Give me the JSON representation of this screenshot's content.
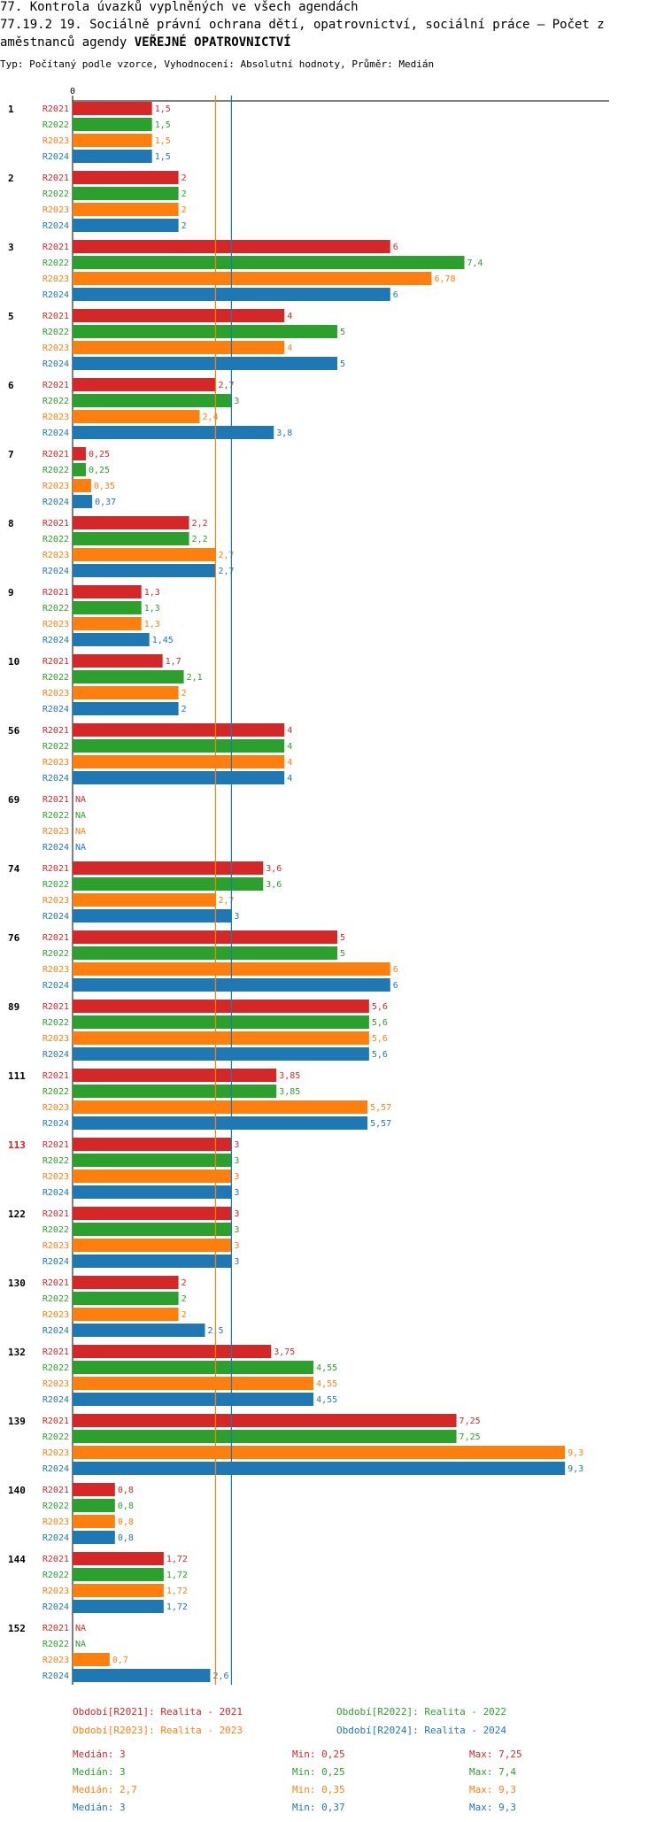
{
  "header": {
    "line1": "77. Kontrola úvazků vyplněných ve všech agendách",
    "line2": "77.19.2 19. Sociálně právní ochrana dětí, opatrovnictví, sociální práce – Počet z",
    "line3_prefix": "aměstnanců agendy ",
    "line3_bold": "VEŘEJNÉ OPATROVNICTVÍ",
    "line4": "Typ: Počítaný podle vzorce, Vyhodnocení: Absolutní hodnoty, Průměr: Medián"
  },
  "colors": {
    "R2021": "#d62728",
    "R2022": "#2ca02c",
    "R2023": "#ff7f0e",
    "R2024": "#1f77b4",
    "highlight_group": "#e31a1c"
  },
  "chart_data": {
    "type": "bar",
    "orientation": "horizontal",
    "axis_zero_label": "0",
    "xlim": [
      0,
      9.3
    ],
    "series_names": [
      "R2021",
      "R2022",
      "R2023",
      "R2024"
    ],
    "highlighted_group": "113",
    "groups": [
      {
        "id": "1",
        "values": [
          "1,5",
          "1,5",
          "1,5",
          "1,5"
        ]
      },
      {
        "id": "2",
        "values": [
          "2",
          "2",
          "2",
          "2"
        ]
      },
      {
        "id": "3",
        "values": [
          "6",
          "7,4",
          "6,78",
          "6"
        ]
      },
      {
        "id": "5",
        "values": [
          "4",
          "5",
          "4",
          "5"
        ]
      },
      {
        "id": "6",
        "values": [
          "2,7",
          "3",
          "2,4",
          "3,8"
        ]
      },
      {
        "id": "7",
        "values": [
          "0,25",
          "0,25",
          "0,35",
          "0,37"
        ]
      },
      {
        "id": "8",
        "values": [
          "2,2",
          "2,2",
          "2,7",
          "2,7"
        ]
      },
      {
        "id": "9",
        "values": [
          "1,3",
          "1,3",
          "1,3",
          "1,45"
        ]
      },
      {
        "id": "10",
        "values": [
          "1,7",
          "2,1",
          "2",
          "2"
        ]
      },
      {
        "id": "56",
        "values": [
          "4",
          "4",
          "4",
          "4"
        ]
      },
      {
        "id": "69",
        "values": [
          "NA",
          "NA",
          "NA",
          "NA"
        ]
      },
      {
        "id": "74",
        "values": [
          "3,6",
          "3,6",
          "2,7",
          "3"
        ]
      },
      {
        "id": "76",
        "values": [
          "5",
          "5",
          "6",
          "6"
        ]
      },
      {
        "id": "89",
        "values": [
          "5,6",
          "5,6",
          "5,6",
          "5,6"
        ]
      },
      {
        "id": "111",
        "values": [
          "3,85",
          "3,85",
          "5,57",
          "5,57"
        ]
      },
      {
        "id": "113",
        "values": [
          "3",
          "3",
          "3",
          "3"
        ]
      },
      {
        "id": "122",
        "values": [
          "3",
          "3",
          "3",
          "3"
        ]
      },
      {
        "id": "130",
        "values": [
          "2",
          "2",
          "2",
          "2,5"
        ]
      },
      {
        "id": "132",
        "values": [
          "3,75",
          "4,55",
          "4,55",
          "4,55"
        ]
      },
      {
        "id": "139",
        "values": [
          "7,25",
          "7,25",
          "9,3",
          "9,3"
        ]
      },
      {
        "id": "140",
        "values": [
          "0,8",
          "0,8",
          "0,8",
          "0,8"
        ]
      },
      {
        "id": "144",
        "values": [
          "1,72",
          "1,72",
          "1,72",
          "1,72"
        ]
      },
      {
        "id": "152",
        "values": [
          "NA",
          "NA",
          "0,7",
          "2,6"
        ]
      }
    ],
    "median_lines": [
      {
        "series": "R2023",
        "value": 2.7
      },
      {
        "series": "R2024",
        "value": 3
      }
    ]
  },
  "legend": [
    {
      "series": "R2021",
      "text": "Období[R2021]: Realita - 2021"
    },
    {
      "series": "R2022",
      "text": "Období[R2022]: Realita - 2022"
    },
    {
      "series": "R2023",
      "text": "Období[R2023]: Realita - 2023"
    },
    {
      "series": "R2024",
      "text": "Období[R2024]: Realita - 2024"
    }
  ],
  "stats": [
    {
      "series": "R2021",
      "median": "Medián: 3",
      "min": "Min: 0,25",
      "max": "Max: 7,25"
    },
    {
      "series": "R2022",
      "median": "Medián: 3",
      "min": "Min: 0,25",
      "max": "Max: 7,4"
    },
    {
      "series": "R2023",
      "median": "Medián: 2,7",
      "min": "Min: 0,35",
      "max": "Max: 9,3"
    },
    {
      "series": "R2024",
      "median": "Medián: 3",
      "min": "Min: 0,37",
      "max": "Max: 9,3"
    }
  ]
}
